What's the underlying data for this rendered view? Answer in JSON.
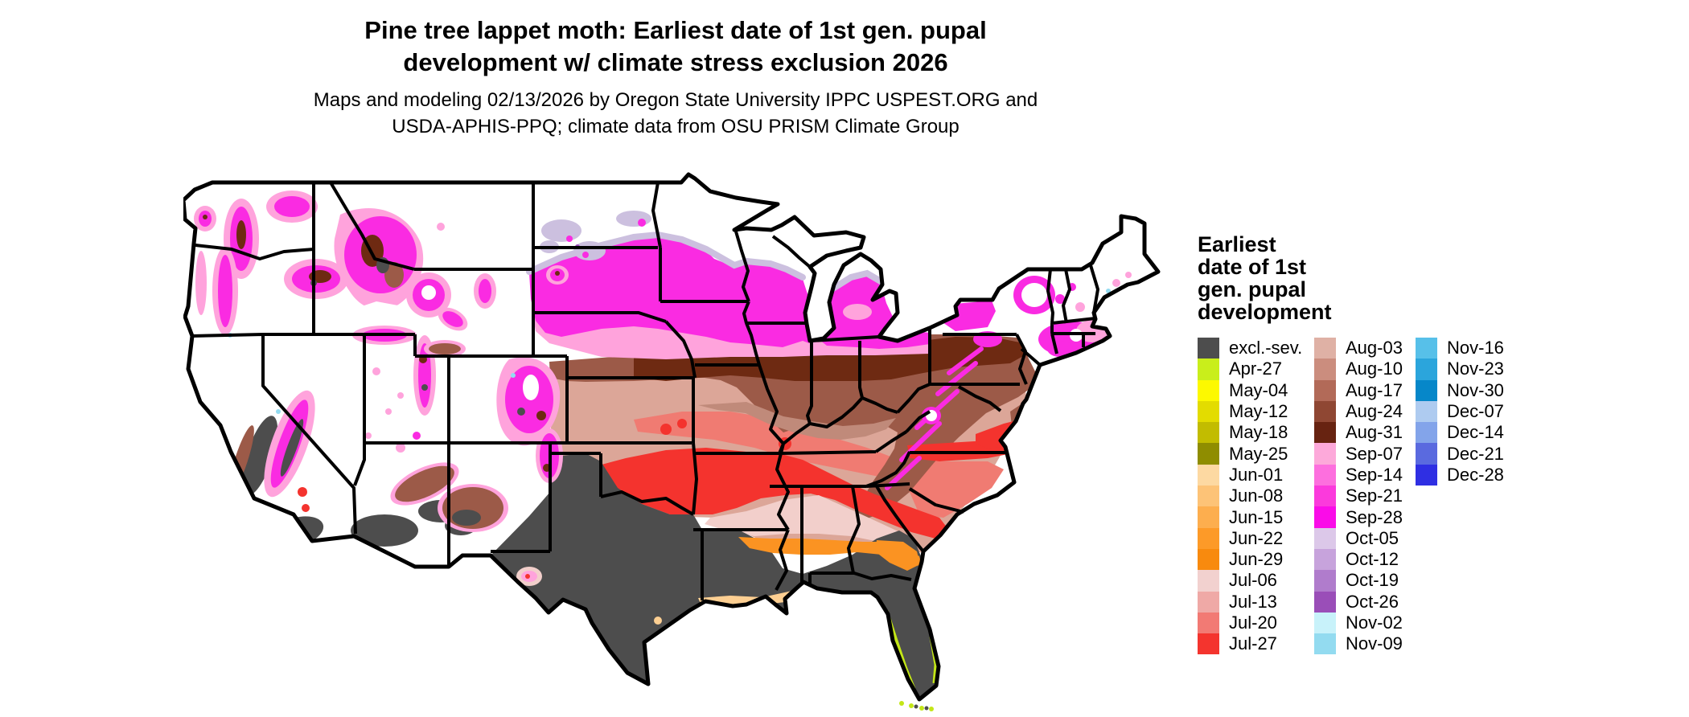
{
  "title": {
    "line1": "Pine tree lappet moth: Earliest date of 1st gen. pupal",
    "line2": "development w/ climate stress exclusion 2026"
  },
  "subtitle": {
    "line1": "Maps and modeling 02/13/2026 by Oregon State University IPPC USPEST.ORG and",
    "line2": "USDA-APHIS-PPQ; climate data from OSU PRISM Climate Group"
  },
  "legend": {
    "title_lines": [
      "Earliest",
      "date of 1st",
      "gen. pupal",
      "development"
    ],
    "columns": [
      [
        {
          "label": "excl.-sev.",
          "color": "#4D4D4D"
        },
        {
          "label": "Apr-27",
          "color": "#C9EE1B"
        },
        {
          "label": "May-04",
          "color": "#FDF900"
        },
        {
          "label": "May-12",
          "color": "#E3DC00"
        },
        {
          "label": "May-18",
          "color": "#C2BC00"
        },
        {
          "label": "May-25",
          "color": "#8F8D00"
        },
        {
          "label": "Jun-01",
          "color": "#FDD9A2"
        },
        {
          "label": "Jun-08",
          "color": "#FDC377"
        },
        {
          "label": "Jun-15",
          "color": "#FDAE4E"
        },
        {
          "label": "Jun-22",
          "color": "#FD9A28"
        },
        {
          "label": "Jun-29",
          "color": "#F88A0E"
        },
        {
          "label": "Jul-06",
          "color": "#F2D1CF"
        },
        {
          "label": "Jul-13",
          "color": "#EFA9A6"
        },
        {
          "label": "Jul-20",
          "color": "#F27A74"
        },
        {
          "label": "Jul-27",
          "color": "#F4342E"
        }
      ],
      [
        {
          "label": "Aug-03",
          "color": "#DFB1A5"
        },
        {
          "label": "Aug-10",
          "color": "#CB8D7E"
        },
        {
          "label": "Aug-17",
          "color": "#B26A58"
        },
        {
          "label": "Aug-24",
          "color": "#8F4733"
        },
        {
          "label": "Aug-31",
          "color": "#672311"
        },
        {
          "label": "Sep-07",
          "color": "#FDA9DA"
        },
        {
          "label": "Sep-14",
          "color": "#FD6FDE"
        },
        {
          "label": "Sep-21",
          "color": "#FB3ADC"
        },
        {
          "label": "Sep-28",
          "color": "#FA0CE8"
        },
        {
          "label": "Oct-05",
          "color": "#DCC8E9"
        },
        {
          "label": "Oct-12",
          "color": "#C7A3DC"
        },
        {
          "label": "Oct-19",
          "color": "#B07CCC"
        },
        {
          "label": "Oct-26",
          "color": "#9A4EB8"
        },
        {
          "label": "Nov-02",
          "color": "#C8F2FA"
        },
        {
          "label": "Nov-09",
          "color": "#93DBF0"
        }
      ],
      [
        {
          "label": "Nov-16",
          "color": "#57C0E9"
        },
        {
          "label": "Nov-23",
          "color": "#2BA5DC"
        },
        {
          "label": "Nov-30",
          "color": "#0687C9"
        },
        {
          "label": "Dec-07",
          "color": "#AECBF0"
        },
        {
          "label": "Dec-14",
          "color": "#83A4EA"
        },
        {
          "label": "Dec-21",
          "color": "#5A6ADF"
        },
        {
          "label": "Dec-28",
          "color": "#2F2FE3"
        }
      ]
    ]
  },
  "map": {
    "palette": {
      "white": "#FFFFFF",
      "gray": "#4D4D4D",
      "magenta": "#FA2BE2",
      "pink": "#FFA3DC",
      "palepink": "#F2CFCB",
      "rose": "#DCA698",
      "salmon": "#F07B72",
      "brown": "#9C5A48",
      "darkbrown": "#6E2A12",
      "lightbrown": "#C08A7A",
      "red": "#F4332E",
      "orange": "#FB9322",
      "peach": "#FDCF92",
      "lavender": "#CCC0DF",
      "purple": "#9A4EB8",
      "chartreuse": "#C3E617",
      "cyan": "#93DBF0",
      "border": "#000000"
    }
  }
}
